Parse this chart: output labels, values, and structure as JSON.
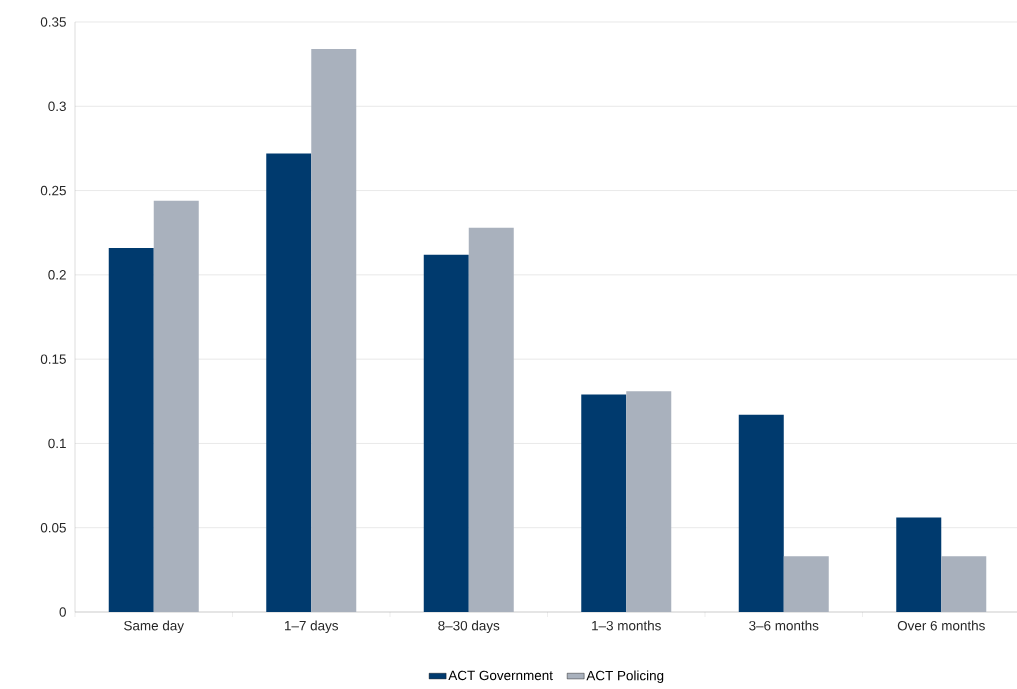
{
  "chart_data": {
    "type": "bar",
    "categories": [
      "Same day",
      "1–7 days",
      "8–30 days",
      "1–3 months",
      "3–6 months",
      "Over 6 months"
    ],
    "series": [
      {
        "name": "ACT Government",
        "color": "#003a6e",
        "values": [
          0.216,
          0.272,
          0.212,
          0.129,
          0.117,
          0.056
        ]
      },
      {
        "name": "ACT Policing",
        "color": "#a9b1bd",
        "values": [
          0.244,
          0.334,
          0.228,
          0.131,
          0.033,
          0.033
        ]
      }
    ],
    "ylim": [
      0,
      0.35
    ],
    "yticks": [
      0,
      0.05,
      0.1,
      0.15,
      0.2,
      0.25,
      0.3,
      0.35
    ],
    "grid": "y",
    "legend": "bottom"
  }
}
